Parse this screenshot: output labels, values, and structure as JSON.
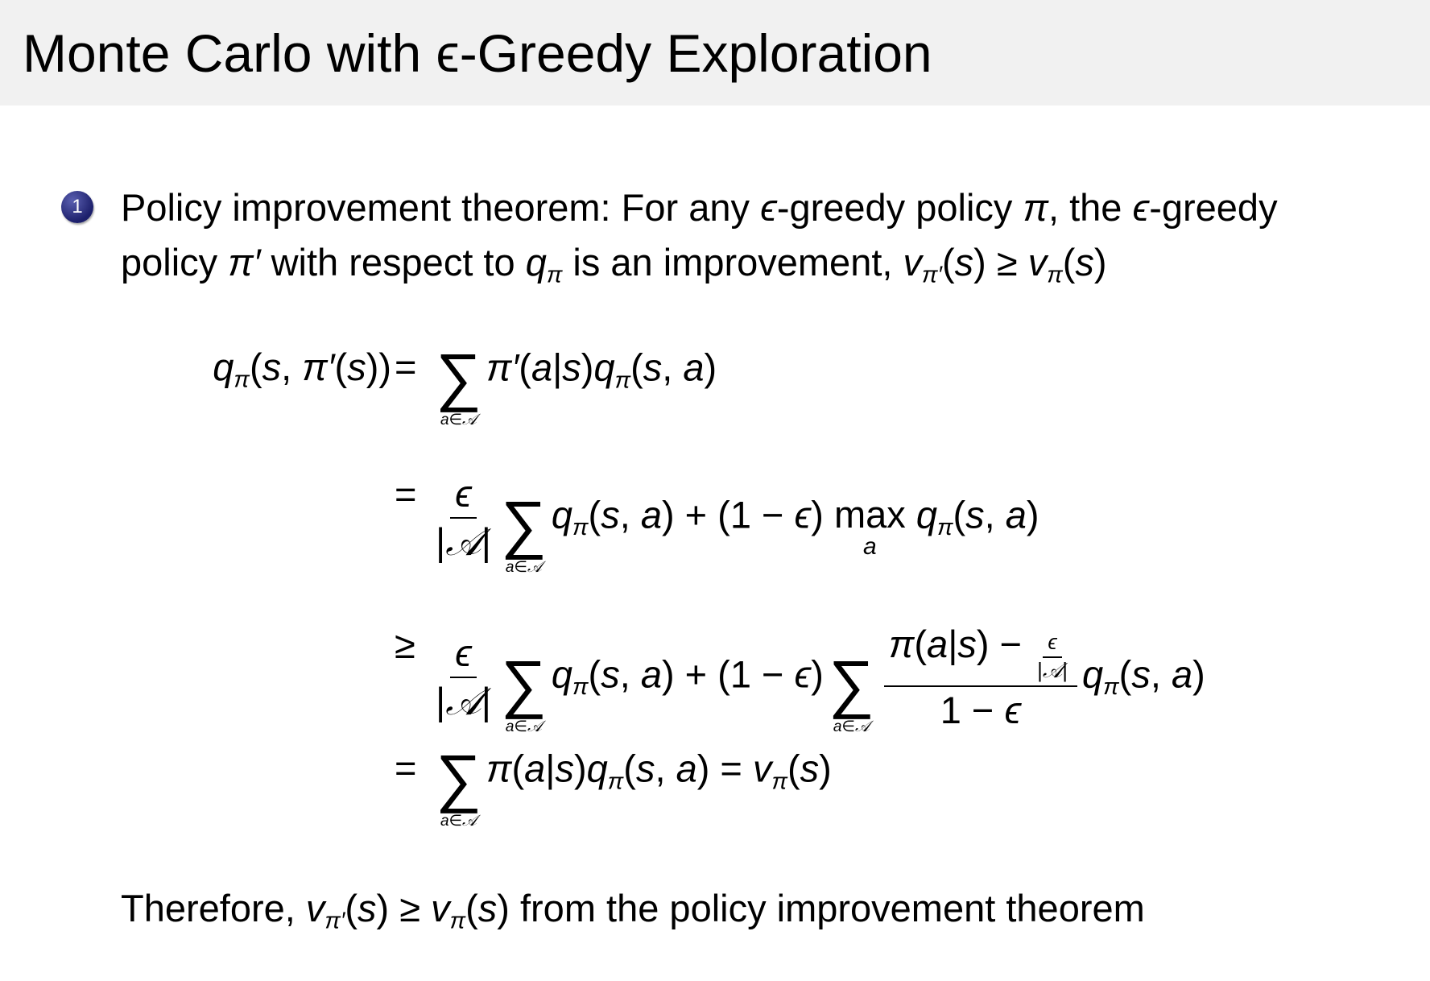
{
  "title": "Monte Carlo with ϵ-Greedy Exploration",
  "bullet": {
    "number": "1",
    "line1": [
      {
        "k": "t",
        "v": "Policy improvement theorem: For any "
      },
      {
        "k": "i",
        "v": "ϵ"
      },
      {
        "k": "t",
        "v": "-greedy policy "
      },
      {
        "k": "i",
        "v": "π"
      },
      {
        "k": "t",
        "v": ", the "
      },
      {
        "k": "i",
        "v": "ϵ"
      },
      {
        "k": "t",
        "v": "-greedy"
      }
    ],
    "line2": [
      {
        "k": "t",
        "v": "policy "
      },
      {
        "k": "i",
        "v": "π′"
      },
      {
        "k": "t",
        "v": " with respect to "
      },
      {
        "k": "i",
        "v": "q"
      },
      {
        "k": "sub",
        "v": "π"
      },
      {
        "k": "t",
        "v": " is an improvement, "
      },
      {
        "k": "i",
        "v": "v"
      },
      {
        "k": "sub",
        "v": "π′"
      },
      {
        "k": "t",
        "v": "("
      },
      {
        "k": "i",
        "v": "s"
      },
      {
        "k": "t",
        "v": ") ≥ "
      },
      {
        "k": "i",
        "v": "v"
      },
      {
        "k": "sub",
        "v": "π"
      },
      {
        "k": "t",
        "v": "("
      },
      {
        "k": "i",
        "v": "s"
      },
      {
        "k": "t",
        "v": ")"
      }
    ]
  },
  "equations": [
    {
      "lhs": [
        {
          "k": "i",
          "v": "q"
        },
        {
          "k": "sub",
          "v": "π"
        },
        {
          "k": "t",
          "v": "("
        },
        {
          "k": "i",
          "v": "s"
        },
        {
          "k": "t",
          "v": ", "
        },
        {
          "k": "i",
          "v": "π′"
        },
        {
          "k": "t",
          "v": "("
        },
        {
          "k": "i",
          "v": "s"
        },
        {
          "k": "t",
          "v": "))"
        }
      ],
      "rel": "=",
      "rhs": [
        {
          "k": "sum",
          "under": "a∈𝒜"
        },
        {
          "k": "i",
          "v": "π′"
        },
        {
          "k": "t",
          "v": "("
        },
        {
          "k": "i",
          "v": "a"
        },
        {
          "k": "t",
          "v": "|"
        },
        {
          "k": "i",
          "v": "s"
        },
        {
          "k": "t",
          "v": ")"
        },
        {
          "k": "i",
          "v": "q"
        },
        {
          "k": "sub",
          "v": "π"
        },
        {
          "k": "t",
          "v": "("
        },
        {
          "k": "i",
          "v": "s"
        },
        {
          "k": "t",
          "v": ", "
        },
        {
          "k": "i",
          "v": "a"
        },
        {
          "k": "t",
          "v": ")"
        }
      ]
    },
    {
      "lhs": [],
      "rel": "=",
      "rhs": [
        {
          "k": "frac",
          "num": [
            {
              "k": "i",
              "v": "ϵ"
            }
          ],
          "den": [
            {
              "k": "t",
              "v": "|"
            },
            {
              "k": "i",
              "v": "𝒜"
            },
            {
              "k": "t",
              "v": "|"
            }
          ]
        },
        {
          "k": "sum",
          "under": "a∈𝒜"
        },
        {
          "k": "i",
          "v": "q"
        },
        {
          "k": "sub",
          "v": "π"
        },
        {
          "k": "t",
          "v": "("
        },
        {
          "k": "i",
          "v": "s"
        },
        {
          "k": "t",
          "v": ", "
        },
        {
          "k": "i",
          "v": "a"
        },
        {
          "k": "t",
          "v": ") + (1 − "
        },
        {
          "k": "i",
          "v": "ϵ"
        },
        {
          "k": "t",
          "v": ") "
        },
        {
          "k": "op",
          "v": "max",
          "under": "a"
        },
        {
          "k": "t",
          "v": " "
        },
        {
          "k": "i",
          "v": "q"
        },
        {
          "k": "sub",
          "v": "π"
        },
        {
          "k": "t",
          "v": "("
        },
        {
          "k": "i",
          "v": "s"
        },
        {
          "k": "t",
          "v": ", "
        },
        {
          "k": "i",
          "v": "a"
        },
        {
          "k": "t",
          "v": ")"
        }
      ]
    },
    {
      "lhs": [],
      "rel": "≥",
      "rhs": [
        {
          "k": "frac",
          "num": [
            {
              "k": "i",
              "v": "ϵ"
            }
          ],
          "den": [
            {
              "k": "t",
              "v": "|"
            },
            {
              "k": "i",
              "v": "𝒜"
            },
            {
              "k": "t",
              "v": "|"
            }
          ]
        },
        {
          "k": "sum",
          "under": "a∈𝒜"
        },
        {
          "k": "i",
          "v": "q"
        },
        {
          "k": "sub",
          "v": "π"
        },
        {
          "k": "t",
          "v": "("
        },
        {
          "k": "i",
          "v": "s"
        },
        {
          "k": "t",
          "v": ", "
        },
        {
          "k": "i",
          "v": "a"
        },
        {
          "k": "t",
          "v": ") + (1 − "
        },
        {
          "k": "i",
          "v": "ϵ"
        },
        {
          "k": "t",
          "v": ")"
        },
        {
          "k": "sum",
          "under": "a∈𝒜"
        },
        {
          "k": "frac",
          "num": [
            {
              "k": "i",
              "v": "π"
            },
            {
              "k": "t",
              "v": "("
            },
            {
              "k": "i",
              "v": "a"
            },
            {
              "k": "t",
              "v": "|"
            },
            {
              "k": "i",
              "v": "s"
            },
            {
              "k": "t",
              "v": ") − "
            },
            {
              "k": "frac",
              "small": true,
              "num": [
                {
                  "k": "i",
                  "v": "ϵ"
                }
              ],
              "den": [
                {
                  "k": "t",
                  "v": "|"
                },
                {
                  "k": "i",
                  "v": "𝒜"
                },
                {
                  "k": "t",
                  "v": "|"
                }
              ]
            }
          ],
          "den": [
            {
              "k": "t",
              "v": "1 − "
            },
            {
              "k": "i",
              "v": "ϵ"
            }
          ]
        },
        {
          "k": "i",
          "v": "q"
        },
        {
          "k": "sub",
          "v": "π"
        },
        {
          "k": "t",
          "v": "("
        },
        {
          "k": "i",
          "v": "s"
        },
        {
          "k": "t",
          "v": ", "
        },
        {
          "k": "i",
          "v": "a"
        },
        {
          "k": "t",
          "v": ")"
        }
      ]
    },
    {
      "lhs": [],
      "rel": "=",
      "rhs": [
        {
          "k": "sum",
          "under": "a∈𝒜"
        },
        {
          "k": "i",
          "v": "π"
        },
        {
          "k": "t",
          "v": "("
        },
        {
          "k": "i",
          "v": "a"
        },
        {
          "k": "t",
          "v": "|"
        },
        {
          "k": "i",
          "v": "s"
        },
        {
          "k": "t",
          "v": ")"
        },
        {
          "k": "i",
          "v": "q"
        },
        {
          "k": "sub",
          "v": "π"
        },
        {
          "k": "t",
          "v": "("
        },
        {
          "k": "i",
          "v": "s"
        },
        {
          "k": "t",
          "v": ", "
        },
        {
          "k": "i",
          "v": "a"
        },
        {
          "k": "t",
          "v": ") = "
        },
        {
          "k": "i",
          "v": "v"
        },
        {
          "k": "sub",
          "v": "π"
        },
        {
          "k": "t",
          "v": "("
        },
        {
          "k": "i",
          "v": "s"
        },
        {
          "k": "t",
          "v": ")"
        }
      ]
    }
  ],
  "conclusion": [
    {
      "k": "t",
      "v": "Therefore, "
    },
    {
      "k": "i",
      "v": "v"
    },
    {
      "k": "sub",
      "v": "π′"
    },
    {
      "k": "t",
      "v": "("
    },
    {
      "k": "i",
      "v": "s"
    },
    {
      "k": "t",
      "v": ") ≥ "
    },
    {
      "k": "i",
      "v": "v"
    },
    {
      "k": "sub",
      "v": "π"
    },
    {
      "k": "t",
      "v": "("
    },
    {
      "k": "i",
      "v": "s"
    },
    {
      "k": "t",
      "v": ") from the policy improvement theorem"
    }
  ]
}
